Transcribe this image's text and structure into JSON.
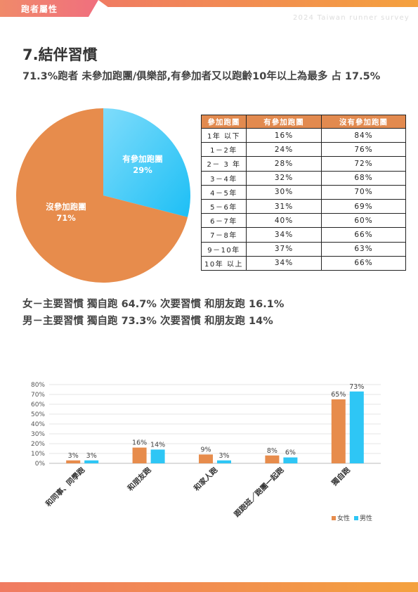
{
  "header": {
    "section_tag": "跑者屬性",
    "survey_tag": "2024 Taiwan runner survey"
  },
  "colors": {
    "orange": "#e78c4c",
    "blue": "#2ec6f5",
    "table_header": "#e28a4f"
  },
  "title": "7.結伴習慣",
  "subtitle": "71.3%跑者 未參加跑團/俱樂部,有參加者又以跑齡10年以上為最多 占 17.5%",
  "pie": {
    "slices": [
      {
        "label": "有參加跑團",
        "percent_label": "29%",
        "value": 29,
        "color": "#2ec6f5"
      },
      {
        "label": "沒參加跑團",
        "percent_label": "71%",
        "value": 71,
        "color": "#e78c4c"
      }
    ]
  },
  "table": {
    "headers": [
      "參加跑團",
      "有參加跑團",
      "沒有參加跑團"
    ],
    "rows": [
      [
        "1年 以下",
        "16%",
        "84%"
      ],
      [
        "1－2年",
        "24%",
        "76%"
      ],
      [
        "2－ 3 年",
        "28%",
        "72%"
      ],
      [
        "3－4年",
        "32%",
        "68%"
      ],
      [
        "4－5年",
        "30%",
        "70%"
      ],
      [
        "5－6年",
        "31%",
        "69%"
      ],
      [
        "6－7年",
        "40%",
        "60%"
      ],
      [
        "7－8年",
        "34%",
        "66%"
      ],
      [
        "9－10年",
        "37%",
        "63%"
      ],
      [
        "10年 以上",
        "34%",
        "66%"
      ]
    ]
  },
  "habits": {
    "female": "女－主要習慣 獨自跑 64.7% 次要習慣 和朋友跑 16.1%",
    "male": "男－主要習慣 獨自跑 73.3% 次要習慣 和朋友跑 14%"
  },
  "chart_data": {
    "type": "bar",
    "categories": [
      "和同事、同學跑",
      "和朋友跑",
      "和家人跑",
      "跟跑班／跑團一起跑",
      "獨自跑"
    ],
    "series": [
      {
        "name": "女性",
        "values": [
          3,
          16,
          9,
          8,
          65
        ],
        "labels": [
          "3%",
          "16%",
          "9%",
          "8%",
          "65%"
        ],
        "color": "#e78c4c"
      },
      {
        "name": "男性",
        "values": [
          3,
          14,
          3,
          6,
          73
        ],
        "labels": [
          "3%",
          "14%",
          "3%",
          "6%",
          "73%"
        ],
        "color": "#2ec6f5"
      }
    ],
    "y_ticks": [
      "0%",
      "10%",
      "20%",
      "30%",
      "40%",
      "50%",
      "60%",
      "70%",
      "80%"
    ],
    "ylim": [
      0,
      80
    ],
    "grid": true,
    "legend": "bottom-right"
  }
}
